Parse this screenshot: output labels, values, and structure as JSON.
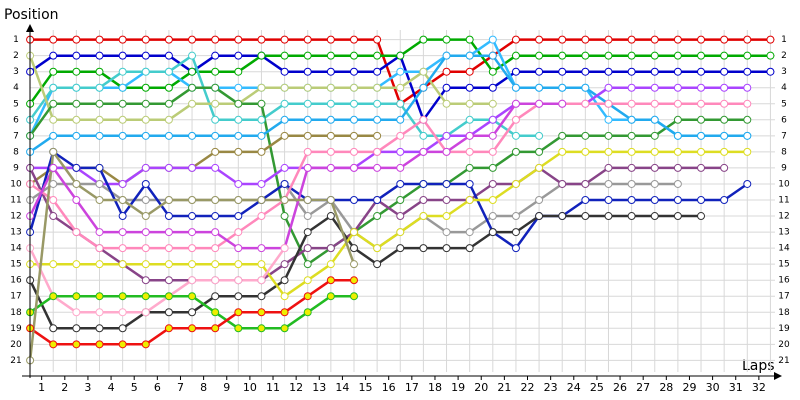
{
  "chart_data": {
    "type": "line",
    "y_label": "Position",
    "x_label": "Laps",
    "x": [
      0,
      1,
      2,
      3,
      4,
      5,
      6,
      7,
      8,
      9,
      10,
      11,
      12,
      13,
      14,
      15,
      16,
      17,
      18,
      19,
      20,
      21,
      22,
      23,
      24,
      25,
      26,
      27,
      28,
      29,
      30,
      31,
      32
    ],
    "xlim": [
      -0.35,
      32.5
    ],
    "xticks": [
      {
        "value": 0.5,
        "label": "1"
      },
      {
        "value": 1.5,
        "label": "2"
      },
      {
        "value": 2.5,
        "label": "3"
      },
      {
        "value": 3.5,
        "label": "4"
      },
      {
        "value": 4.5,
        "label": "5"
      },
      {
        "value": 5.5,
        "label": "6"
      },
      {
        "value": 6.5,
        "label": "7"
      },
      {
        "value": 7.5,
        "label": "8"
      },
      {
        "value": 8.5,
        "label": "9"
      },
      {
        "value": 9.5,
        "label": "10"
      },
      {
        "value": 10.5,
        "label": "11"
      },
      {
        "value": 11.5,
        "label": "12"
      },
      {
        "value": 12.5,
        "label": "13"
      },
      {
        "value": 13.5,
        "label": "14"
      },
      {
        "value": 14.5,
        "label": "15"
      },
      {
        "value": 15.5,
        "label": "16"
      },
      {
        "value": 16.5,
        "label": "17"
      },
      {
        "value": 17.5,
        "label": "18"
      },
      {
        "value": 18.5,
        "label": "19"
      },
      {
        "value": 19.5,
        "label": "20"
      },
      {
        "value": 20.5,
        "label": "21"
      },
      {
        "value": 21.5,
        "label": "22"
      },
      {
        "value": 22.5,
        "label": "23"
      },
      {
        "value": 23.5,
        "label": "24"
      },
      {
        "value": 24.5,
        "label": "25"
      },
      {
        "value": 25.5,
        "label": "26"
      },
      {
        "value": 26.5,
        "label": "27"
      },
      {
        "value": 27.5,
        "label": "28"
      },
      {
        "value": 28.5,
        "label": "29"
      },
      {
        "value": 29.5,
        "label": "30"
      },
      {
        "value": 30.5,
        "label": "31"
      },
      {
        "value": 31.5,
        "label": "32"
      }
    ],
    "ylim": [
      0.4,
      21.6
    ],
    "y_reversed": true,
    "yticks": [
      1,
      2,
      3,
      4,
      5,
      6,
      7,
      8,
      9,
      10,
      11,
      12,
      13,
      14,
      15,
      16,
      17,
      18,
      19,
      20,
      21
    ],
    "grid": true,
    "series": [
      {
        "color": "#e00000",
        "values": [
          1,
          1,
          1,
          1,
          1,
          1,
          1,
          1,
          1,
          1,
          1,
          1,
          1,
          1,
          1,
          1,
          5,
          4,
          3,
          3,
          2,
          1,
          1,
          1,
          1,
          1,
          1,
          1,
          1,
          1,
          1,
          1,
          1
        ]
      },
      {
        "color": "#0000cc",
        "values": [
          3,
          2,
          2,
          2,
          2,
          2,
          2,
          3,
          2,
          2,
          2,
          3,
          3,
          3,
          3,
          3,
          2,
          6,
          4,
          4,
          4,
          3,
          3,
          3,
          3,
          3,
          3,
          3,
          3,
          3,
          3,
          3,
          3
        ]
      },
      {
        "color": "#00aa00",
        "values": [
          5,
          3,
          3,
          3,
          4,
          4,
          4,
          3,
          3,
          3,
          2,
          2,
          2,
          2,
          2,
          2,
          2,
          1,
          1,
          1,
          3,
          2,
          2,
          2,
          2,
          2,
          2,
          2,
          2,
          2,
          2,
          2,
          2
        ]
      },
      {
        "color": "#33bbff",
        "values": [
          7,
          4,
          4,
          4,
          4,
          3,
          3,
          4,
          4,
          4,
          4,
          4,
          4,
          4,
          4,
          4,
          3,
          3,
          2,
          2,
          1,
          4,
          4,
          4,
          4,
          6,
          6,
          6,
          7,
          7,
          7,
          7,
          null
        ]
      },
      {
        "color": "#44cccc",
        "values": [
          6,
          4,
          4,
          4,
          3,
          3,
          3,
          2,
          6,
          6,
          6,
          5,
          5,
          5,
          5,
          5,
          5,
          7,
          7,
          6,
          6,
          7,
          7,
          null,
          null,
          null,
          null,
          null,
          null,
          null,
          null,
          null,
          null
        ]
      },
      {
        "color": "#bbcc77",
        "values": [
          2,
          6,
          6,
          6,
          6,
          6,
          6,
          5,
          5,
          5,
          4,
          4,
          4,
          4,
          4,
          4,
          4,
          3,
          5,
          5,
          5,
          null,
          null,
          null,
          null,
          null,
          null,
          null,
          null,
          null,
          null,
          null,
          null
        ]
      },
      {
        "color": "#339933",
        "values": [
          7,
          5,
          5,
          5,
          5,
          5,
          5,
          4,
          4,
          5,
          5,
          12,
          15,
          14,
          13,
          12,
          11,
          10,
          10,
          9,
          9,
          8,
          8,
          7,
          7,
          7,
          7,
          7,
          6,
          6,
          6,
          6,
          null
        ]
      },
      {
        "color": "#22aaee",
        "values": [
          8,
          7,
          7,
          7,
          7,
          7,
          7,
          7,
          7,
          7,
          7,
          6,
          6,
          6,
          6,
          6,
          6,
          4,
          2,
          2,
          2,
          4,
          4,
          4,
          4,
          5,
          6,
          6,
          7,
          7,
          7,
          7,
          null
        ]
      },
      {
        "color": "#998844",
        "values": [
          10,
          9,
          9,
          9,
          10,
          9,
          9,
          9,
          8,
          8,
          8,
          7,
          7,
          7,
          7,
          7,
          null,
          null,
          null,
          null,
          null,
          null,
          null,
          null,
          null,
          null,
          null,
          null,
          null,
          null,
          null,
          null,
          null
        ]
      },
      {
        "color": "#aa44ff",
        "values": [
          9,
          9,
          9,
          10,
          10,
          9,
          9,
          9,
          9,
          10,
          10,
          9,
          9,
          9,
          9,
          8,
          8,
          8,
          7,
          7,
          6,
          5,
          5,
          5,
          5,
          4,
          4,
          4,
          4,
          4,
          4,
          4,
          null
        ]
      },
      {
        "color": "#999999",
        "values": [
          11,
          10,
          10,
          10,
          11,
          11,
          11,
          11,
          11,
          11,
          11,
          10,
          12,
          11,
          13,
          14,
          13,
          12,
          13,
          13,
          12,
          12,
          11,
          10,
          10,
          10,
          10,
          10,
          10,
          null,
          null,
          null,
          null
        ]
      },
      {
        "color": "#884488",
        "values": [
          9,
          12,
          13,
          14,
          15,
          16,
          16,
          16,
          16,
          16,
          16,
          15,
          14,
          14,
          13,
          11,
          12,
          11,
          11,
          11,
          10,
          10,
          9,
          10,
          10,
          9,
          9,
          9,
          9,
          9,
          9,
          null,
          null
        ]
      },
      {
        "color": "#1122bb",
        "values": [
          13,
          8,
          9,
          9,
          12,
          10,
          12,
          12,
          12,
          12,
          11,
          10,
          11,
          11,
          11,
          11,
          10,
          10,
          10,
          10,
          13,
          14,
          12,
          12,
          11,
          11,
          11,
          11,
          11,
          11,
          11,
          10,
          null
        ]
      },
      {
        "color": "#333333",
        "values": [
          16,
          19,
          19,
          19,
          19,
          18,
          18,
          18,
          17,
          17,
          17,
          16,
          13,
          12,
          14,
          15,
          14,
          14,
          14,
          14,
          13,
          13,
          12,
          12,
          12,
          12,
          12,
          12,
          12,
          12,
          null,
          null,
          null
        ]
      },
      {
        "color": "#dddd22",
        "values": [
          15,
          15,
          15,
          15,
          15,
          15,
          15,
          15,
          15,
          15,
          15,
          17,
          16,
          15,
          13,
          14,
          13,
          12,
          12,
          11,
          11,
          10,
          9,
          8,
          8,
          8,
          8,
          8,
          8,
          8,
          8,
          8,
          null
        ]
      },
      {
        "color": "#ff88bb",
        "values": [
          10,
          11,
          13,
          14,
          14,
          14,
          14,
          14,
          14,
          13,
          12,
          11,
          8,
          8,
          8,
          8,
          7,
          6,
          8,
          8,
          8,
          6,
          5,
          5,
          5,
          5,
          5,
          5,
          5,
          5,
          5,
          5,
          null
        ]
      },
      {
        "color": "#cc44dd",
        "values": [
          12,
          9,
          11,
          13,
          13,
          13,
          13,
          13,
          13,
          14,
          14,
          14,
          9,
          9,
          9,
          9,
          9,
          8,
          8,
          7,
          7,
          5,
          5,
          5,
          null,
          null,
          null,
          null,
          null,
          null,
          null,
          null,
          null
        ]
      },
      {
        "color": "#ffaacc",
        "values": [
          14,
          17,
          18,
          18,
          18,
          18,
          17,
          16,
          16,
          16,
          16,
          14,
          null,
          null,
          null,
          null,
          null,
          null,
          null,
          null,
          null,
          null,
          null,
          null,
          null,
          null,
          null,
          null,
          null,
          null,
          null,
          null,
          null
        ]
      },
      {
        "color": "#22bb22",
        "marker_color": "#eeee00",
        "values": [
          18,
          17,
          17,
          17,
          17,
          17,
          17,
          17,
          18,
          19,
          19,
          19,
          18,
          17,
          17,
          null,
          null,
          null,
          null,
          null,
          null,
          null,
          null,
          null,
          null,
          null,
          null,
          null,
          null,
          null,
          null,
          null,
          null
        ]
      },
      {
        "color": "#ee1111",
        "marker_color": "#eeee00",
        "values": [
          19,
          20,
          20,
          20,
          20,
          20,
          19,
          19,
          19,
          18,
          18,
          18,
          17,
          16,
          16,
          null,
          null,
          null,
          null,
          null,
          null,
          null,
          null,
          null,
          null,
          null,
          null,
          null,
          null,
          null,
          null,
          null,
          null
        ]
      },
      {
        "color": "#999966",
        "values": [
          21,
          8,
          10,
          11,
          11,
          12,
          11,
          11,
          11,
          11,
          11,
          11,
          11,
          11,
          15,
          null,
          null,
          null,
          null,
          null,
          null,
          null,
          null,
          null,
          null,
          null,
          null,
          null,
          null,
          null,
          null,
          null,
          null
        ]
      }
    ]
  }
}
